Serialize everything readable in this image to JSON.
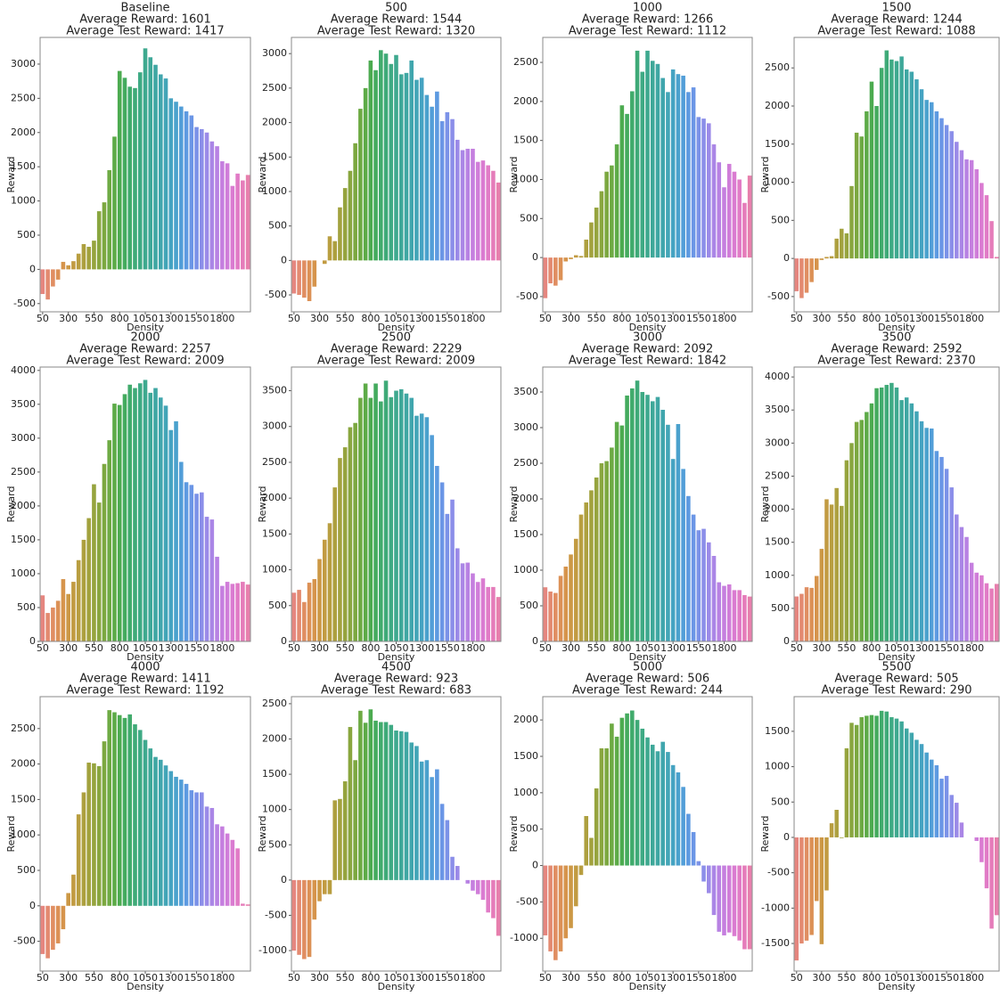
{
  "palette": [
    "#e5867f",
    "#e38a70",
    "#e08e62",
    "#dc9156",
    "#d6944c",
    "#cc9845",
    "#c29b42",
    "#b89e40",
    "#ada03f",
    "#a2a23e",
    "#96a43e",
    "#89a63f",
    "#7ca840",
    "#6daa43",
    "#5dab48",
    "#4cab50",
    "#44ab5e",
    "#41ab6c",
    "#3faa78",
    "#3eaa84",
    "#3ea98f",
    "#3ea899",
    "#3fa7a3",
    "#40a6ad",
    "#42a5b7",
    "#45a3c2",
    "#4aa1cd",
    "#529ed8",
    "#5d9ae1",
    "#6b96e6",
    "#7b92e8",
    "#8b8ee9",
    "#9b8ae8",
    "#aa86e6",
    "#b882e3",
    "#c57fdf",
    "#d07dd9",
    "#da7bd1",
    "#e17bc6",
    "#e57cba",
    "#e77fad"
  ],
  "chart_data": [
    {
      "type": "bar",
      "title": [
        "Baseline",
        "Average Reward: 1601",
        "Average Test Reward: 1417"
      ],
      "x_label": "Density",
      "y_label": "Reward",
      "categories": [
        "50",
        null,
        null,
        null,
        null,
        "300",
        null,
        null,
        null,
        null,
        "550",
        null,
        null,
        null,
        null,
        "800",
        null,
        null,
        null,
        null,
        "1050",
        null,
        null,
        null,
        null,
        "1300",
        null,
        null,
        null,
        null,
        "1550",
        null,
        null,
        null,
        null,
        "1800",
        null,
        null,
        null,
        null,
        null
      ],
      "values": [
        -360,
        -440,
        -250,
        -150,
        110,
        60,
        120,
        230,
        370,
        330,
        420,
        850,
        980,
        1450,
        1940,
        2900,
        2800,
        2670,
        2650,
        2880,
        3230,
        3100,
        2990,
        2850,
        2790,
        2500,
        2450,
        2380,
        2310,
        2250,
        2080,
        2050,
        2000,
        1870,
        1800,
        1580,
        1550,
        1220,
        1400,
        1300,
        1380
      ],
      "ylim": [
        -620,
        3390
      ],
      "yticks": [
        -500,
        0,
        500,
        1000,
        1500,
        2000,
        2500,
        3000
      ]
    },
    {
      "type": "bar",
      "title": [
        "500",
        "Average Reward: 1544",
        "Average Test Reward: 1320"
      ],
      "x_label": "Density",
      "y_label": "Reward",
      "categories": [
        "50",
        null,
        null,
        null,
        null,
        "300",
        null,
        null,
        null,
        null,
        "550",
        null,
        null,
        null,
        null,
        "800",
        null,
        null,
        null,
        null,
        "1050",
        null,
        null,
        null,
        null,
        "1300",
        null,
        null,
        null,
        null,
        "1550",
        null,
        null,
        null,
        null,
        "1800",
        null,
        null,
        null,
        null,
        null
      ],
      "values": [
        -480,
        -500,
        -540,
        -590,
        -380,
        0,
        -50,
        350,
        280,
        770,
        1050,
        1300,
        1700,
        2200,
        2500,
        2900,
        2760,
        3050,
        3000,
        2850,
        2980,
        2700,
        2720,
        2900,
        2620,
        2650,
        2400,
        2230,
        2450,
        2020,
        2150,
        2050,
        1750,
        1600,
        1620,
        1620,
        1430,
        1450,
        1380,
        1300,
        1130
      ],
      "ylim": [
        -745,
        3235
      ],
      "yticks": [
        -500,
        0,
        500,
        1000,
        1500,
        2000,
        2500,
        3000
      ]
    },
    {
      "type": "bar",
      "title": [
        "1000",
        "Average Reward: 1266",
        "Average Test Reward: 1112"
      ],
      "x_label": "Density",
      "y_label": "Reward",
      "categories": [
        "50",
        null,
        null,
        null,
        null,
        "300",
        null,
        null,
        null,
        null,
        "550",
        null,
        null,
        null,
        null,
        "800",
        null,
        null,
        null,
        null,
        "1050",
        null,
        null,
        null,
        null,
        "1300",
        null,
        null,
        null,
        null,
        "1550",
        null,
        null,
        null,
        null,
        "1800",
        null,
        null,
        null,
        null,
        null
      ],
      "values": [
        -520,
        -330,
        -360,
        -290,
        -50,
        -20,
        30,
        20,
        230,
        450,
        640,
        850,
        1100,
        1180,
        1450,
        1950,
        1840,
        2130,
        2650,
        2380,
        2650,
        2520,
        2480,
        2300,
        2120,
        2410,
        2350,
        2330,
        2120,
        2180,
        1800,
        1780,
        1720,
        1450,
        1220,
        900,
        1200,
        1100,
        1000,
        700,
        1050
      ],
      "ylim": [
        -695,
        2820
      ],
      "yticks": [
        -500,
        0,
        500,
        1000,
        1500,
        2000,
        2500
      ]
    },
    {
      "type": "bar",
      "title": [
        "1500",
        "Average Reward: 1244",
        "Average Test Reward: 1088"
      ],
      "x_label": "Density",
      "y_label": "Reward",
      "categories": [
        "50",
        null,
        null,
        null,
        null,
        "300",
        null,
        null,
        null,
        null,
        "550",
        null,
        null,
        null,
        null,
        "800",
        null,
        null,
        null,
        null,
        "1050",
        null,
        null,
        null,
        null,
        "1300",
        null,
        null,
        null,
        null,
        "1550",
        null,
        null,
        null,
        null,
        "1800",
        null,
        null,
        null,
        null,
        null
      ],
      "values": [
        -430,
        -520,
        -450,
        -310,
        -150,
        -20,
        20,
        30,
        260,
        390,
        330,
        950,
        1650,
        1600,
        1930,
        2320,
        2000,
        2500,
        2730,
        2610,
        2590,
        2650,
        2480,
        2450,
        2350,
        2220,
        2080,
        2050,
        1930,
        1840,
        1750,
        1670,
        1530,
        1420,
        1300,
        1290,
        1170,
        990,
        830,
        490,
        20
      ],
      "ylim": [
        -700,
        2900
      ],
      "yticks": [
        -500,
        0,
        500,
        1000,
        1500,
        2000,
        2500
      ]
    },
    {
      "type": "bar",
      "title": [
        "2000",
        "Average Reward: 2257",
        "Average Test Reward: 2009"
      ],
      "x_label": "Density",
      "y_label": "Reward",
      "categories": [
        "50",
        null,
        null,
        null,
        null,
        "300",
        null,
        null,
        null,
        null,
        "550",
        null,
        null,
        null,
        null,
        "800",
        null,
        null,
        null,
        null,
        "1050",
        null,
        null,
        null,
        null,
        "1300",
        null,
        null,
        null,
        null,
        "1550",
        null,
        null,
        null,
        null,
        "1800",
        null,
        null,
        null,
        null,
        null
      ],
      "values": [
        680,
        420,
        500,
        600,
        920,
        700,
        880,
        1200,
        1500,
        1820,
        2320,
        2050,
        2620,
        2970,
        3510,
        3490,
        3650,
        3790,
        3740,
        3810,
        3860,
        3670,
        3740,
        3600,
        3480,
        3120,
        3250,
        2650,
        2350,
        2310,
        2180,
        2200,
        1840,
        1800,
        1250,
        820,
        880,
        850,
        860,
        880,
        840
      ],
      "ylim": [
        0,
        4050
      ],
      "yticks": [
        0,
        500,
        1000,
        1500,
        2000,
        2500,
        3000,
        3500,
        4000
      ]
    },
    {
      "type": "bar",
      "title": [
        "2500",
        "Average Reward: 2229",
        "Average Test Reward: 2009"
      ],
      "x_label": "Density",
      "y_label": "Reward",
      "categories": [
        "50",
        null,
        null,
        null,
        null,
        "300",
        null,
        null,
        null,
        null,
        "550",
        null,
        null,
        null,
        null,
        "800",
        null,
        null,
        null,
        null,
        "1050",
        null,
        null,
        null,
        null,
        "1300",
        null,
        null,
        null,
        null,
        "1550",
        null,
        null,
        null,
        null,
        "1800",
        null,
        null,
        null,
        null,
        null
      ],
      "values": [
        680,
        720,
        550,
        820,
        870,
        1150,
        1420,
        1650,
        2150,
        2560,
        2710,
        2990,
        3050,
        3400,
        3600,
        3400,
        3600,
        3350,
        3640,
        3410,
        3500,
        3520,
        3460,
        3400,
        3150,
        3180,
        3130,
        2880,
        2450,
        2220,
        1780,
        1980,
        1300,
        1090,
        1100,
        950,
        830,
        880,
        760,
        760,
        620
      ],
      "ylim": [
        0,
        3830
      ],
      "yticks": [
        0,
        500,
        1000,
        1500,
        2000,
        2500,
        3000,
        3500
      ]
    },
    {
      "type": "bar",
      "title": [
        "3000",
        "Average Reward: 2092",
        "Average Test Reward: 1842"
      ],
      "x_label": "Density",
      "y_label": "Reward",
      "categories": [
        "50",
        null,
        null,
        null,
        null,
        "300",
        null,
        null,
        null,
        null,
        "550",
        null,
        null,
        null,
        null,
        "800",
        null,
        null,
        null,
        null,
        "1050",
        null,
        null,
        null,
        null,
        "1300",
        null,
        null,
        null,
        null,
        "1550",
        null,
        null,
        null,
        null,
        "1800",
        null,
        null,
        null,
        null,
        null
      ],
      "values": [
        760,
        700,
        680,
        920,
        1050,
        1220,
        1440,
        1780,
        1950,
        2120,
        2300,
        2500,
        2530,
        2720,
        3080,
        3030,
        3450,
        3550,
        3660,
        3500,
        3460,
        3370,
        3430,
        3250,
        3040,
        2560,
        3050,
        2420,
        2040,
        1780,
        1560,
        1580,
        1390,
        1200,
        830,
        780,
        800,
        720,
        720,
        650,
        630
      ],
      "ylim": [
        0,
        3850
      ],
      "yticks": [
        0,
        500,
        1000,
        1500,
        2000,
        2500,
        3000,
        3500
      ]
    },
    {
      "type": "bar",
      "title": [
        "3500",
        "Average Reward: 2592",
        "Average Test Reward: 2370"
      ],
      "x_label": "Density",
      "y_label": "Reward",
      "categories": [
        "50",
        null,
        null,
        null,
        null,
        "300",
        null,
        null,
        null,
        null,
        "550",
        null,
        null,
        null,
        null,
        "800",
        null,
        null,
        null,
        null,
        "1050",
        null,
        null,
        null,
        null,
        "1300",
        null,
        null,
        null,
        null,
        "1550",
        null,
        null,
        null,
        null,
        "1800",
        null,
        null,
        null,
        null,
        null
      ],
      "values": [
        680,
        720,
        820,
        810,
        990,
        1400,
        2150,
        2070,
        2320,
        2050,
        2740,
        3000,
        3320,
        3350,
        3470,
        3600,
        3830,
        3840,
        3880,
        3910,
        3840,
        3650,
        3690,
        3600,
        3480,
        3330,
        3230,
        3220,
        2880,
        2790,
        2610,
        2330,
        1920,
        1730,
        1580,
        1190,
        1040,
        1000,
        880,
        800,
        870
      ],
      "ylim": [
        0,
        4150
      ],
      "yticks": [
        0,
        500,
        1000,
        1500,
        2000,
        2500,
        3000,
        3500,
        4000
      ]
    },
    {
      "type": "bar",
      "title": [
        "4000",
        "Average Reward: 1411",
        "Average Test Reward: 1192"
      ],
      "x_label": "Density",
      "y_label": "Reward",
      "categories": [
        "50",
        null,
        null,
        null,
        null,
        "300",
        null,
        null,
        null,
        null,
        "550",
        null,
        null,
        null,
        null,
        "800",
        null,
        null,
        null,
        null,
        "1050",
        null,
        null,
        null,
        null,
        "1300",
        null,
        null,
        null,
        null,
        "1550",
        null,
        null,
        null,
        null,
        "1800",
        null,
        null,
        null,
        null,
        null
      ],
      "values": [
        -680,
        -740,
        -620,
        -530,
        -330,
        180,
        440,
        1290,
        1600,
        2020,
        2010,
        1970,
        2320,
        2760,
        2730,
        2690,
        2650,
        2700,
        2560,
        2480,
        2340,
        2220,
        2100,
        2060,
        1980,
        1900,
        1820,
        1780,
        1720,
        1630,
        1600,
        1600,
        1400,
        1380,
        1150,
        1120,
        1020,
        930,
        810,
        30,
        20
      ],
      "ylim": [
        -920,
        2950
      ],
      "yticks": [
        -500,
        0,
        500,
        1000,
        1500,
        2000,
        2500
      ]
    },
    {
      "type": "bar",
      "title": [
        "4500",
        "Average Reward: 923",
        "Average Test Reward: 683"
      ],
      "x_label": "Density",
      "y_label": "Reward",
      "categories": [
        "50",
        null,
        null,
        null,
        null,
        "300",
        null,
        null,
        null,
        null,
        "550",
        null,
        null,
        null,
        null,
        "800",
        null,
        null,
        null,
        null,
        "1050",
        null,
        null,
        null,
        null,
        "1300",
        null,
        null,
        null,
        null,
        "1550",
        null,
        null,
        null,
        null,
        "1800",
        null,
        null,
        null,
        null,
        null
      ],
      "values": [
        -1000,
        -1060,
        -1120,
        -1090,
        -560,
        -300,
        -200,
        -200,
        1130,
        1150,
        1400,
        2170,
        1700,
        2400,
        2230,
        2420,
        2260,
        2240,
        2240,
        2200,
        2120,
        2110,
        2100,
        1950,
        1900,
        1680,
        1700,
        1460,
        1570,
        1080,
        850,
        330,
        200,
        0,
        -50,
        -150,
        -200,
        -280,
        -460,
        -540,
        -790
      ],
      "ylim": [
        -1290,
        2600
      ],
      "yticks": [
        -1000,
        -500,
        0,
        500,
        1000,
        1500,
        2000,
        2500
      ]
    },
    {
      "type": "bar",
      "title": [
        "5000",
        "Average Reward: 506",
        "Average Test Reward: 244"
      ],
      "x_label": "Density",
      "y_label": "Reward",
      "categories": [
        "50",
        null,
        null,
        null,
        null,
        "300",
        null,
        null,
        null,
        null,
        "550",
        null,
        null,
        null,
        null,
        "800",
        null,
        null,
        null,
        null,
        "1050",
        null,
        null,
        null,
        null,
        "1300",
        null,
        null,
        null,
        null,
        "1550",
        null,
        null,
        null,
        null,
        "1800",
        null,
        null,
        null,
        null,
        null
      ],
      "values": [
        -960,
        -1180,
        -1300,
        -1180,
        -1000,
        -860,
        -560,
        -130,
        680,
        380,
        1060,
        1610,
        1610,
        1950,
        1770,
        2030,
        2090,
        2130,
        2000,
        1880,
        1760,
        1660,
        1570,
        1700,
        1560,
        1380,
        1280,
        1080,
        710,
        460,
        60,
        -220,
        -380,
        -680,
        -910,
        -960,
        -920,
        -970,
        -1030,
        -1150,
        -1150
      ],
      "ylim": [
        -1450,
        2320
      ],
      "yticks": [
        -1000,
        -500,
        0,
        500,
        1000,
        1500,
        2000
      ]
    },
    {
      "type": "bar",
      "title": [
        "5500",
        "Average Reward: 505",
        "Average Test Reward: 290"
      ],
      "x_label": "Density",
      "y_label": "Reward",
      "categories": [
        "50",
        null,
        null,
        null,
        null,
        "300",
        null,
        null,
        null,
        null,
        "550",
        null,
        null,
        null,
        null,
        "800",
        null,
        null,
        null,
        null,
        "1050",
        null,
        null,
        null,
        null,
        "1300",
        null,
        null,
        null,
        null,
        "1550",
        null,
        null,
        null,
        null,
        "1800",
        null,
        null,
        null,
        null,
        null
      ],
      "values": [
        -1740,
        -1500,
        -1460,
        -1380,
        -900,
        -1510,
        -750,
        200,
        390,
        -10,
        1260,
        1620,
        1590,
        1700,
        1720,
        1730,
        1720,
        1790,
        1780,
        1700,
        1680,
        1640,
        1540,
        1480,
        1380,
        1320,
        1200,
        1100,
        1020,
        830,
        870,
        600,
        490,
        210,
        0,
        0,
        -50,
        -350,
        -720,
        -1290,
        -1100
      ],
      "ylim": [
        -1890,
        1990
      ],
      "yticks": [
        -1500,
        -1000,
        -500,
        0,
        500,
        1000,
        1500
      ]
    }
  ]
}
